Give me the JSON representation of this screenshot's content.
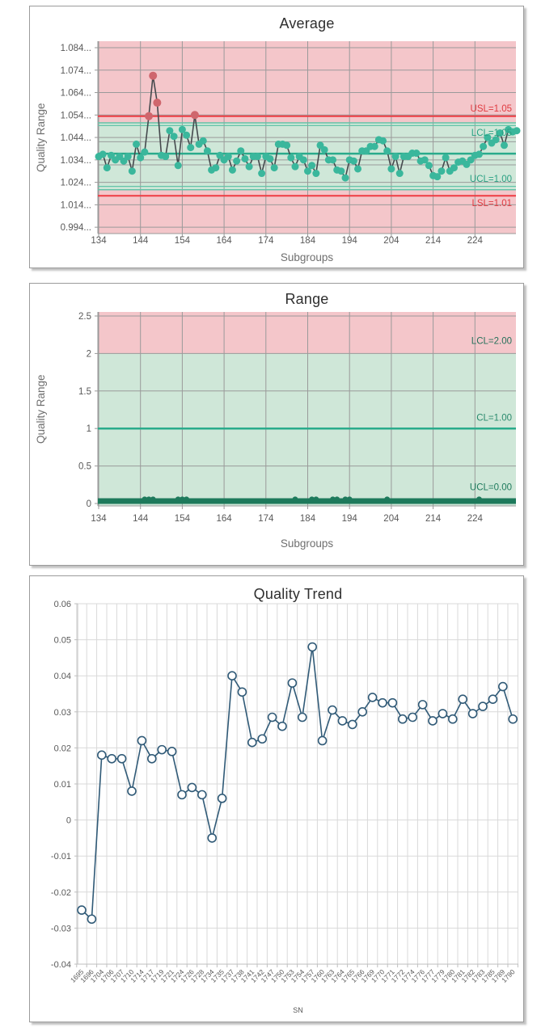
{
  "page_background": "#ffffff",
  "chart_data": [
    {
      "id": "average",
      "type": "line",
      "title": "Average",
      "xlabel": "Subgroups",
      "ylabel": "Quality Range",
      "x_ticks": [
        "134",
        "144",
        "154",
        "164",
        "174",
        "184",
        "194",
        "204",
        "214",
        "224"
      ],
      "y_tick_labels": [
        "1.084...",
        "1.074...",
        "1.064...",
        "1.054...",
        "1.044...",
        "1.034...",
        "1.024...",
        "1.014...",
        "0.994..."
      ],
      "x_start": 134,
      "values": [
        1.0355,
        1.0365,
        1.0305,
        1.036,
        1.034,
        1.0355,
        1.0335,
        1.0355,
        1.029,
        1.041,
        1.035,
        1.0375,
        1.0535,
        1.0715,
        1.0595,
        1.036,
        1.0355,
        1.047,
        1.0445,
        1.0315,
        1.0475,
        1.045,
        1.0395,
        1.054,
        1.041,
        1.0425,
        1.038,
        1.0295,
        1.0305,
        1.036,
        1.034,
        1.0355,
        1.0295,
        1.0335,
        1.038,
        1.0345,
        1.031,
        1.0355,
        1.0355,
        1.028,
        1.0355,
        1.0345,
        1.0305,
        1.041,
        1.041,
        1.0405,
        1.035,
        1.031,
        1.0355,
        1.034,
        1.029,
        1.0315,
        1.028,
        1.0405,
        1.0385,
        1.034,
        1.034,
        1.0295,
        1.029,
        1.026,
        1.034,
        1.0335,
        1.03,
        1.038,
        1.038,
        1.04,
        1.04,
        1.043,
        1.0425,
        1.038,
        1.03,
        1.0355,
        1.028,
        1.0355,
        1.0355,
        1.037,
        1.037,
        1.0335,
        1.034,
        1.0315,
        1.027,
        1.0265,
        1.029,
        1.035,
        1.029,
        1.0305,
        1.033,
        1.0335,
        1.032,
        1.034,
        1.036,
        1.0365,
        1.04,
        1.044,
        1.0415,
        1.043,
        1.046,
        1.0405,
        1.0475,
        1.0465,
        1.047
      ],
      "out_of_spec_above": 1.0535,
      "series_color": "#3ab79c",
      "out_color": "#cf666d",
      "connector_color": "#45494d",
      "grid_color": "#9a9a9a",
      "tick_label_color": "#595959",
      "bands": [
        {
          "from": "top",
          "to": 1.0505,
          "color": "#f4c6ca"
        },
        {
          "from": 1.0505,
          "to": 1.0207,
          "color": "#cfe7d8"
        },
        {
          "from": 1.0207,
          "to": "bottom",
          "color": "#f4c6ca"
        }
      ],
      "zone_lines": [
        1.0421,
        1.0318
      ],
      "lines": [
        {
          "name": "USL",
          "v": 1.0535,
          "color": "#ee3b42",
          "w": 2
        },
        {
          "name": "LCL-edge-a",
          "v": 1.0505,
          "color": "#63c3a8",
          "w": 1.5
        },
        {
          "name": "LCL-edge-b",
          "v": 1.0493,
          "color": "#63c3a8",
          "w": 1.2
        },
        {
          "name": "CL",
          "v": 1.0368,
          "color": "#2aab8c",
          "w": 2.5
        },
        {
          "name": "UCL-edge-a",
          "v": 1.0222,
          "color": "#63c3a8",
          "w": 1.2
        },
        {
          "name": "UCL-edge-b",
          "v": 1.0207,
          "color": "#63c3a8",
          "w": 1.5
        },
        {
          "name": "LSL",
          "v": 1.018,
          "color": "#ee3b42",
          "w": 2
        }
      ],
      "annotations": [
        {
          "text": "USL=1.05",
          "v": 1.057,
          "color": "#e03a40"
        },
        {
          "text": "LCL=1.05",
          "v": 1.0462,
          "color": "#2aa183"
        },
        {
          "text": "UCL=1.00",
          "v": 1.0257,
          "color": "#2aa183"
        },
        {
          "text": "LSL=1.01",
          "v": 1.0149,
          "color": "#e03a40"
        }
      ]
    },
    {
      "id": "range",
      "type": "line",
      "title": "Range",
      "xlabel": "Subgroups",
      "ylabel": "Quality Range",
      "x_ticks": [
        "134",
        "144",
        "154",
        "164",
        "174",
        "184",
        "194",
        "204",
        "214",
        "224"
      ],
      "y_tick_labels": [
        "2.5",
        "2",
        "1.5",
        "1",
        "0.5",
        "0"
      ],
      "grid_color": "#9a9a9a",
      "tick_label_color": "#595959",
      "bands": [
        {
          "from": "top",
          "to": 2,
          "color": "#f4c6ca"
        },
        {
          "from": 2,
          "to": "bottom",
          "color": "#cfe7d8"
        }
      ],
      "lines": [
        {
          "name": "CL",
          "v": 1.0,
          "color": "#2aab8c",
          "w": 2.5
        },
        {
          "name": "UCL-baseline",
          "v": 0.033,
          "color": "#1e7a5c",
          "w": 7
        }
      ],
      "dot_x": [
        145,
        146,
        147,
        153,
        154,
        155,
        181,
        185,
        186,
        190,
        191,
        193,
        194,
        203,
        225
      ],
      "dot_value": 0.055,
      "dot_color": "#1e7a5c",
      "annotations": [
        {
          "text": "LCL=2.00",
          "v": 2.17,
          "color": "#25705a"
        },
        {
          "text": "CL=1.00",
          "v": 1.15,
          "color": "#2a8a6d"
        },
        {
          "text": "UCL=0.00",
          "v": 0.22,
          "color": "#1e7a5c"
        }
      ]
    },
    {
      "id": "trend",
      "type": "line",
      "title": "Quality Trend",
      "xlabel": "SN",
      "categories": [
        "1695",
        "1696",
        "1704",
        "1706",
        "1707",
        "1710",
        "1714",
        "1717",
        "1719",
        "1721",
        "1724",
        "1726",
        "1728",
        "1734",
        "1735",
        "1737",
        "1738",
        "1741",
        "1742",
        "1747",
        "1750",
        "1753",
        "1754",
        "1757",
        "1760",
        "1763",
        "1764",
        "1765",
        "1766",
        "1769",
        "1770",
        "1771",
        "1772",
        "1774",
        "1776",
        "1777",
        "1779",
        "1780",
        "1781",
        "1782",
        "1783",
        "1785",
        "1789",
        "1790"
      ],
      "values": [
        -0.025,
        -0.0275,
        0.018,
        0.017,
        0.017,
        0.008,
        0.022,
        0.017,
        0.0195,
        0.019,
        0.007,
        0.009,
        0.007,
        -0.005,
        0.006,
        0.04,
        0.0355,
        0.0215,
        0.0225,
        0.0285,
        0.026,
        0.038,
        0.0285,
        0.048,
        0.022,
        0.0305,
        0.0275,
        0.0265,
        0.03,
        0.034,
        0.0325,
        0.0325,
        0.028,
        0.0285,
        0.032,
        0.0275,
        0.0295,
        0.028,
        0.0335,
        0.0295,
        0.0315,
        0.0335,
        0.037,
        0.028
      ],
      "y_tick_labels": [
        "0.06",
        "0.05",
        "0.04",
        "0.03",
        "0.02",
        "0.01",
        "0",
        "-0.01",
        "-0.02",
        "-0.03",
        "-0.04"
      ],
      "y_tick_values": [
        0.06,
        0.05,
        0.04,
        0.03,
        0.02,
        0.01,
        0,
        -0.01,
        -0.02,
        -0.03,
        -0.04
      ],
      "ylim": [
        -0.04,
        0.06
      ],
      "line_color": "#305a77",
      "marker": "open-circle",
      "grid_color": "#d9d9d9",
      "axis_color": "#bfbfbf",
      "tick_label_color": "#595959"
    }
  ]
}
